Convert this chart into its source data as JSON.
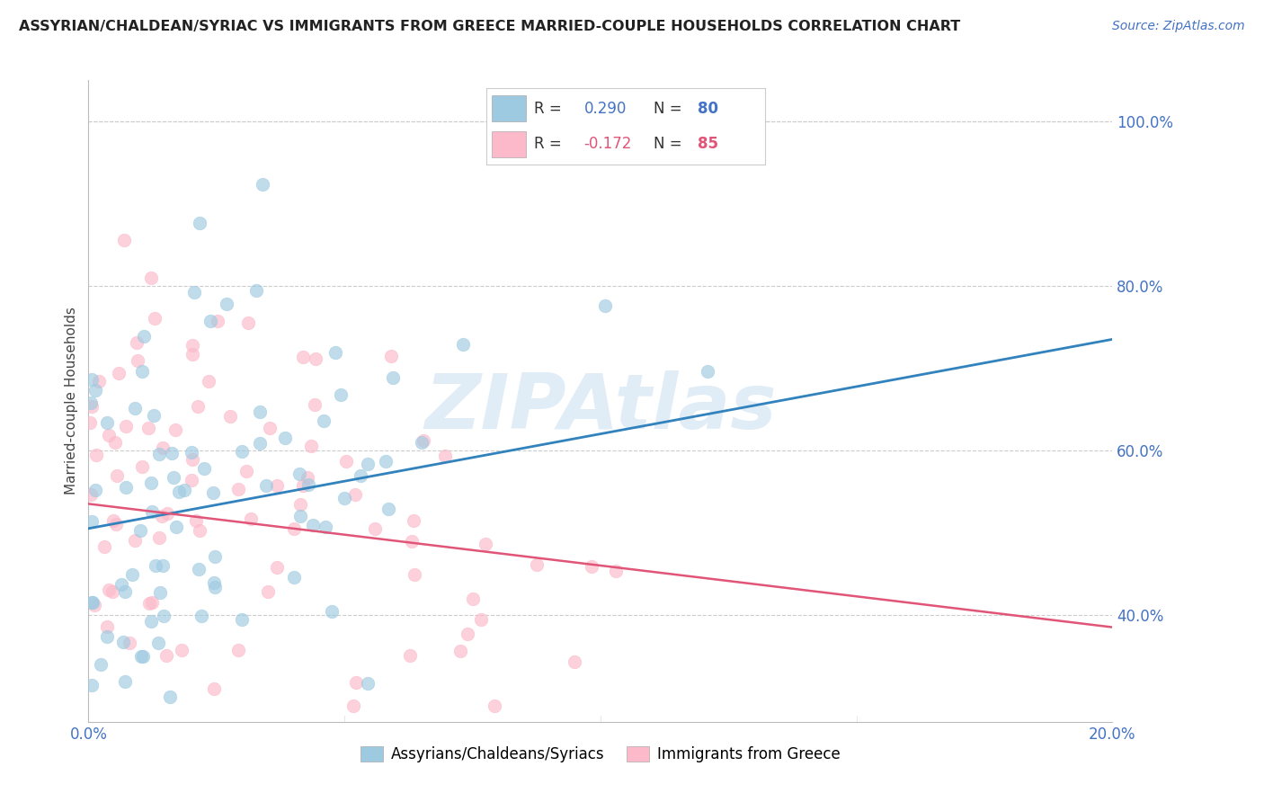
{
  "title": "ASSYRIAN/CHALDEAN/SYRIAC VS IMMIGRANTS FROM GREECE MARRIED-COUPLE HOUSEHOLDS CORRELATION CHART",
  "source": "Source: ZipAtlas.com",
  "ylabel": "Married-couple Households",
  "watermark": "ZIPAtlas",
  "series1_label": "Assyrians/Chaldeans/Syriacs",
  "series2_label": "Immigrants from Greece",
  "blue_color": "#9ecae1",
  "pink_color": "#fcb9c9",
  "blue_line_color": "#3182bd",
  "pink_line_color": "#e05578",
  "title_color": "#222222",
  "axis_tick_color": "#4472c4",
  "grid_color": "#cccccc",
  "xlim": [
    0.0,
    0.2
  ],
  "ylim": [
    0.27,
    1.05
  ],
  "xtick_vals": [
    0.0,
    0.2
  ],
  "xtick_labels": [
    "0.0%",
    "20.0%"
  ],
  "ytick_vals": [
    0.4,
    0.6,
    0.8,
    1.0
  ],
  "ytick_labels": [
    "40.0%",
    "60.0%",
    "80.0%",
    "100.0%"
  ],
  "blue_line": [
    0.0,
    0.505,
    0.2,
    0.735
  ],
  "pink_line": [
    0.0,
    0.535,
    0.2,
    0.385
  ],
  "legend_r1": "R = ",
  "legend_v1": "0.290",
  "legend_n1": "  N = ",
  "legend_nv1": "80",
  "legend_r2": "R = ",
  "legend_v2": "-0.172",
  "legend_n2": "  N = ",
  "legend_nv2": "85",
  "seed": 7
}
